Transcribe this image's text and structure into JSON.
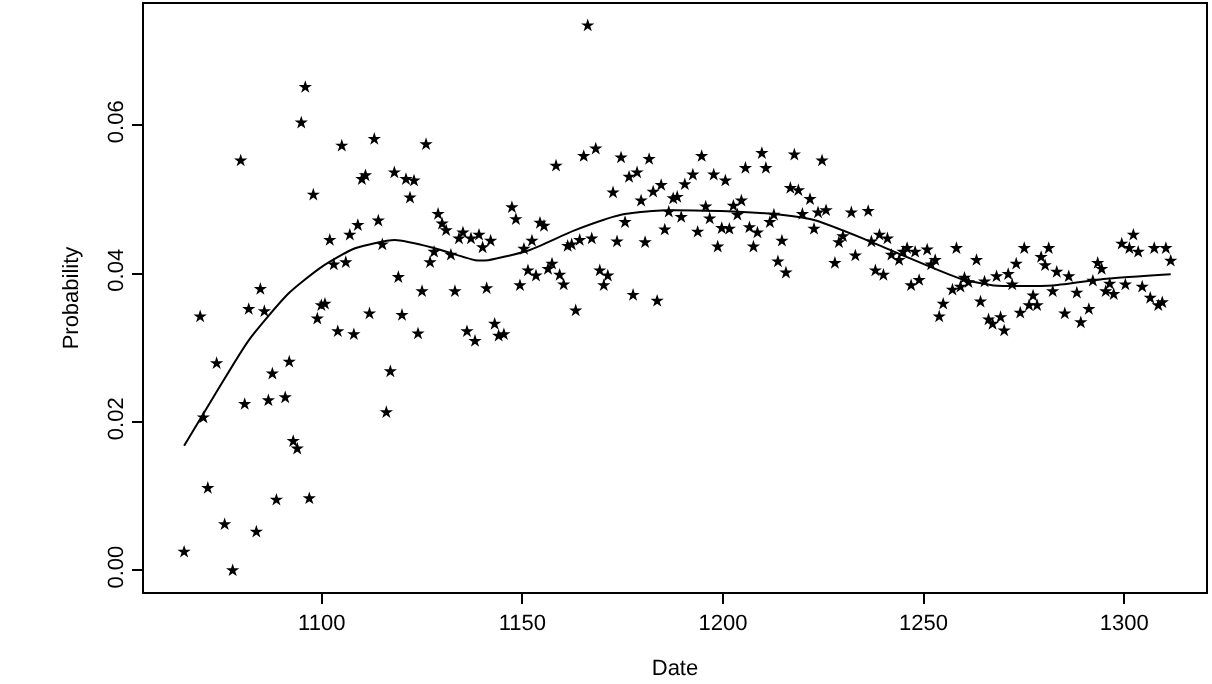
{
  "chart_data": {
    "type": "scatter",
    "xlabel": "Date",
    "ylabel": "Probability",
    "xlim": [
      1055.7,
      1320.4
    ],
    "ylim": [
      -0.0029,
      0.0763
    ],
    "xticks": [
      1100,
      1150,
      1200,
      1250,
      1300
    ],
    "yticks": [
      {
        "value": 0,
        "label": "0.00"
      },
      {
        "value": 0.02,
        "label": "0.02"
      },
      {
        "value": 0.04,
        "label": "0.04"
      },
      {
        "value": 0.06,
        "label": "0.06"
      }
    ],
    "grid": false,
    "series": [
      {
        "type": "scatter",
        "color": "#000000",
        "marker": "star",
        "x": [
          1065.7,
          1069.7,
          1070.5,
          1071.6,
          1073.8,
          1075.8,
          1077.8,
          1079.8,
          1080.8,
          1081.8,
          1083.7,
          1084.7,
          1085.7,
          1086.7,
          1087.7,
          1088.7,
          1090.9,
          1091.9,
          1092.9,
          1093.9,
          1094.9,
          1095.9,
          1096.9,
          1097.9,
          1098.9,
          1099.9,
          1100.8,
          1102.0,
          1103.0,
          1104.0,
          1105.0,
          1106.0,
          1107.0,
          1108.0,
          1109.0,
          1110.0,
          1110.9,
          1111.9,
          1113.1,
          1114.1,
          1115.1,
          1116.1,
          1117.1,
          1118.1,
          1119.1,
          1120.0,
          1121.0,
          1122.0,
          1123.0,
          1124.0,
          1125.0,
          1126.0,
          1127.0,
          1128.0,
          1129.0,
          1130.0,
          1131.0,
          1132.2,
          1133.2,
          1134.2,
          1135.2,
          1136.2,
          1137.2,
          1138.2,
          1139.2,
          1140.1,
          1141.1,
          1142.1,
          1143.1,
          1144.1,
          1145.4,
          1147.4,
          1148.4,
          1149.4,
          1150.4,
          1151.4,
          1152.4,
          1153.4,
          1154.4,
          1155.4,
          1156.4,
          1157.4,
          1158.4,
          1159.3,
          1160.3,
          1161.3,
          1162.3,
          1163.3,
          1164.3,
          1165.3,
          1166.3,
          1167.3,
          1168.3,
          1169.3,
          1170.3,
          1171.3,
          1172.6,
          1173.6,
          1174.6,
          1175.6,
          1176.6,
          1177.6,
          1178.6,
          1179.6,
          1180.6,
          1181.6,
          1182.6,
          1183.6,
          1184.6,
          1185.5,
          1186.5,
          1187.6,
          1188.6,
          1189.6,
          1190.5,
          1192.5,
          1193.7,
          1194.7,
          1195.7,
          1196.7,
          1197.7,
          1198.7,
          1199.7,
          1200.6,
          1201.6,
          1202.6,
          1203.6,
          1204.6,
          1205.6,
          1206.6,
          1207.6,
          1208.6,
          1209.7,
          1210.7,
          1211.7,
          1212.7,
          1213.7,
          1214.7,
          1215.7,
          1216.8,
          1217.8,
          1218.8,
          1219.8,
          1221.7,
          1222.7,
          1223.7,
          1224.7,
          1225.7,
          1227.9,
          1228.9,
          1229.9,
          1232.0,
          1233.0,
          1236.2,
          1237.0,
          1238.0,
          1239.0,
          1240.0,
          1241.0,
          1242.0,
          1243.9,
          1244.9,
          1245.9,
          1246.9,
          1247.9,
          1248.9,
          1250.9,
          1251.9,
          1252.9,
          1253.9,
          1254.9,
          1257.2,
          1258.2,
          1259.2,
          1260.2,
          1261.2,
          1263.2,
          1264.2,
          1265.2,
          1266.2,
          1267.2,
          1268.2,
          1269.2,
          1270.1,
          1271.1,
          1272.1,
          1273.1,
          1274.1,
          1275.1,
          1276.3,
          1277.3,
          1278.3,
          1279.3,
          1280.3,
          1281.2,
          1282.2,
          1283.2,
          1285.2,
          1286.2,
          1288.2,
          1289.2,
          1291.2,
          1292.2,
          1293.4,
          1294.4,
          1295.4,
          1296.4,
          1297.4,
          1299.4,
          1300.3,
          1301.3,
          1302.3,
          1303.5,
          1304.5,
          1306.5,
          1307.5,
          1308.5,
          1309.5,
          1310.4,
          1311.6
        ],
        "values": [
          0.0025,
          0.0342,
          0.0206,
          0.0111,
          0.0279,
          0.0062,
          0.0,
          0.0552,
          0.0224,
          0.0352,
          0.0052,
          0.0379,
          0.0349,
          0.0229,
          0.0265,
          0.0095,
          0.0233,
          0.0281,
          0.0174,
          0.0164,
          0.0603,
          0.0651,
          0.0097,
          0.0506,
          0.0339,
          0.0357,
          0.0359,
          0.0445,
          0.0412,
          0.0322,
          0.0572,
          0.0415,
          0.0452,
          0.0318,
          0.0465,
          0.0527,
          0.0532,
          0.0346,
          0.0581,
          0.0471,
          0.0439,
          0.0213,
          0.0268,
          0.0536,
          0.0395,
          0.0344,
          0.0527,
          0.0502,
          0.0525,
          0.0319,
          0.0376,
          0.0574,
          0.0415,
          0.0429,
          0.048,
          0.0467,
          0.0458,
          0.0425,
          0.0376,
          0.0447,
          0.0455,
          0.0322,
          0.0447,
          0.0309,
          0.0452,
          0.0435,
          0.038,
          0.0444,
          0.0332,
          0.0316,
          0.0318,
          0.0489,
          0.0473,
          0.0384,
          0.0433,
          0.0404,
          0.0444,
          0.0397,
          0.0468,
          0.0464,
          0.0406,
          0.0413,
          0.0545,
          0.0398,
          0.0385,
          0.0437,
          0.0439,
          0.035,
          0.0445,
          0.0558,
          0.0734,
          0.0447,
          0.0568,
          0.0404,
          0.0384,
          0.0397,
          0.0509,
          0.0443,
          0.0556,
          0.0469,
          0.053,
          0.0371,
          0.0536,
          0.0498,
          0.0442,
          0.0554,
          0.051,
          0.0363,
          0.0519,
          0.0459,
          0.0483,
          0.0501,
          0.0503,
          0.0476,
          0.052,
          0.0533,
          0.0456,
          0.0558,
          0.049,
          0.0474,
          0.0533,
          0.0436,
          0.0461,
          0.0525,
          0.046,
          0.0491,
          0.0479,
          0.0498,
          0.0542,
          0.0462,
          0.0436,
          0.0455,
          0.0562,
          0.0542,
          0.0469,
          0.0479,
          0.0416,
          0.0444,
          0.0401,
          0.0515,
          0.056,
          0.0512,
          0.048,
          0.05,
          0.046,
          0.0482,
          0.0552,
          0.0485,
          0.0414,
          0.0442,
          0.045,
          0.0482,
          0.0424,
          0.0484,
          0.0443,
          0.0404,
          0.0452,
          0.0398,
          0.0447,
          0.0425,
          0.0418,
          0.0429,
          0.0434,
          0.0384,
          0.0429,
          0.0391,
          0.0432,
          0.0412,
          0.0418,
          0.0342,
          0.0359,
          0.0378,
          0.0434,
          0.0382,
          0.0394,
          0.0388,
          0.0418,
          0.0362,
          0.0389,
          0.0338,
          0.0332,
          0.0396,
          0.0341,
          0.0323,
          0.0399,
          0.0385,
          0.0413,
          0.0347,
          0.0434,
          0.0357,
          0.037,
          0.0357,
          0.0422,
          0.0411,
          0.0434,
          0.0376,
          0.0402,
          0.0346,
          0.0396,
          0.0374,
          0.0334,
          0.0352,
          0.039,
          0.0414,
          0.0406,
          0.0376,
          0.0386,
          0.0372,
          0.044,
          0.0385,
          0.0434,
          0.0452,
          0.0429,
          0.0382,
          0.0367,
          0.0434,
          0.0357,
          0.0361,
          0.0434,
          0.0417
        ]
      },
      {
        "type": "line",
        "color": "#000000",
        "marker": "none",
        "line_style": "solid",
        "x": [
          1065.7,
          1073.5,
          1081.8,
          1091.7,
          1100,
          1108.3,
          1118.2,
          1128.2,
          1138.2,
          1141.5,
          1151.5,
          1163.0,
          1174.6,
          1184.6,
          1201.1,
          1212.7,
          1222.7,
          1235.9,
          1245.9,
          1259.2,
          1267.5,
          1282.3,
          1295.6,
          1311.6
        ],
        "values": [
          0.0168,
          0.0238,
          0.031,
          0.0373,
          0.0409,
          0.0434,
          0.0445,
          0.0434,
          0.0418,
          0.0418,
          0.0431,
          0.0458,
          0.0479,
          0.0485,
          0.0484,
          0.048,
          0.0472,
          0.0445,
          0.0422,
          0.0393,
          0.0384,
          0.0384,
          0.0393,
          0.0399
        ]
      }
    ]
  }
}
